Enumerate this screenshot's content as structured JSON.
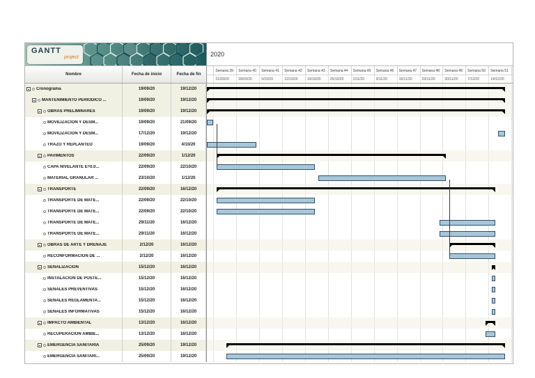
{
  "logo": {
    "title": "GANTT",
    "subtitle": "project"
  },
  "timeline": {
    "year": "2020",
    "weeks": [
      {
        "label": "Semana 39",
        "date": "21/09/20"
      },
      {
        "label": "Semana 40",
        "date": "28/09/20"
      },
      {
        "label": "Semana 41",
        "date": "5/10/20"
      },
      {
        "label": "Semana 42",
        "date": "12/10/20"
      },
      {
        "label": "Semana 43",
        "date": "19/10/20"
      },
      {
        "label": "Semana 44",
        "date": "26/10/20"
      },
      {
        "label": "Semana 45",
        "date": "2/11/20"
      },
      {
        "label": "Semana 46",
        "date": "9/11/20"
      },
      {
        "label": "Semana 47",
        "date": "16/11/20"
      },
      {
        "label": "Semana 48",
        "date": "23/11/20"
      },
      {
        "label": "Semana 49",
        "date": "30/11/20"
      },
      {
        "label": "Semana 50",
        "date": "7/12/20"
      },
      {
        "label": "Semana 51",
        "date": "14/12/20"
      },
      {
        "label": "Semana 52",
        "date": "21/12/20"
      }
    ]
  },
  "table": {
    "columns": [
      "Nombre",
      "Fecha de inicio",
      "Fecha de fin"
    ]
  },
  "chart": {
    "start_date": "19/09/20"
  },
  "tasks": [
    {
      "name": "Cronograma",
      "start": "19/09/20",
      "end": "19/12/20",
      "level": 0,
      "summary": true
    },
    {
      "name": "MANTENIMIENTO PERIÓDICO ...",
      "start": "19/09/20",
      "end": "19/12/20",
      "level": 1,
      "summary": true
    },
    {
      "name": "OBRAS PRELIMINARES",
      "start": "19/09/20",
      "end": "19/12/20",
      "level": 2,
      "summary": true
    },
    {
      "name": "MOVILIZACION Y DESM...",
      "start": "19/09/20",
      "end": "21/09/20",
      "level": 3,
      "summary": false
    },
    {
      "name": "MOVILIZACION Y DESM...",
      "start": "17/12/20",
      "end": "19/12/20",
      "level": 3,
      "summary": false
    },
    {
      "name": "TRAZO Y REPLANTEO",
      "start": "19/09/20",
      "end": "4/10/20",
      "level": 3,
      "summary": false
    },
    {
      "name": "PAVIMENTOS",
      "start": "22/09/20",
      "end": "1/12/20",
      "level": 2,
      "summary": true
    },
    {
      "name": "CAPA NIVELANTE E=0.0...",
      "start": "22/09/20",
      "end": "22/10/20",
      "level": 3,
      "summary": false
    },
    {
      "name": "MATERIAL GRANULAR ...",
      "start": "23/10/20",
      "end": "1/12/20",
      "level": 3,
      "summary": false
    },
    {
      "name": "TRANSPORTE",
      "start": "22/09/20",
      "end": "16/12/20",
      "level": 2,
      "summary": true
    },
    {
      "name": "TRANSPORTE DE MATE...",
      "start": "22/09/20",
      "end": "22/10/20",
      "level": 3,
      "summary": false
    },
    {
      "name": "TRANSPORTE DE MATE...",
      "start": "22/09/20",
      "end": "22/10/20",
      "level": 3,
      "summary": false
    },
    {
      "name": "TRANSPORTE DE MATE...",
      "start": "29/11/20",
      "end": "16/12/20",
      "level": 3,
      "summary": false
    },
    {
      "name": "TRANSPORTE DE MATE...",
      "start": "29/11/20",
      "end": "16/12/20",
      "level": 3,
      "summary": false
    },
    {
      "name": "OBRAS DE ARTE Y DRENAJE",
      "start": "2/12/20",
      "end": "16/12/20",
      "level": 2,
      "summary": true
    },
    {
      "name": "RECONFORMACIÓN DE ...",
      "start": "2/12/20",
      "end": "16/12/20",
      "level": 3,
      "summary": false
    },
    {
      "name": "SEÑALIZACION",
      "start": "15/12/20",
      "end": "16/12/20",
      "level": 2,
      "summary": true
    },
    {
      "name": "INSTALACION DE POSTE...",
      "start": "15/12/20",
      "end": "16/12/20",
      "level": 3,
      "summary": false
    },
    {
      "name": "SEÑALES PREVENTIVAS",
      "start": "15/12/20",
      "end": "16/12/20",
      "level": 3,
      "summary": false
    },
    {
      "name": "SEÑALES REGLAMENTA...",
      "start": "15/12/20",
      "end": "16/12/20",
      "level": 3,
      "summary": false
    },
    {
      "name": "SEÑALES INFORMATIVAS",
      "start": "15/12/20",
      "end": "16/12/20",
      "level": 3,
      "summary": false
    },
    {
      "name": "IMPACTO AMBIENTAL",
      "start": "13/12/20",
      "end": "16/12/20",
      "level": 2,
      "summary": true
    },
    {
      "name": "RECUPERACION AMBIE...",
      "start": "13/12/20",
      "end": "16/12/20",
      "level": 3,
      "summary": false
    },
    {
      "name": "EMERGENCIA SANITARIA",
      "start": "25/09/20",
      "end": "19/12/20",
      "level": 2,
      "summary": true
    },
    {
      "name": "EMERGENCIA SANITARI...",
      "start": "25/09/20",
      "end": "19/12/20",
      "level": 3,
      "summary": false
    }
  ],
  "dependencies": [
    {
      "at_date": "22/09/20",
      "from_task": 4,
      "to_task": 8
    },
    {
      "at_date": "2/12/20",
      "from_task": 9,
      "to_task": 16
    }
  ],
  "colors": {
    "task_bar": "#a9c6d8",
    "task_bar_border": "#27506e",
    "summary_bar": "#000000",
    "summary_row_bg": "#f0f1e2",
    "grid_line": "#e0e0e0"
  }
}
